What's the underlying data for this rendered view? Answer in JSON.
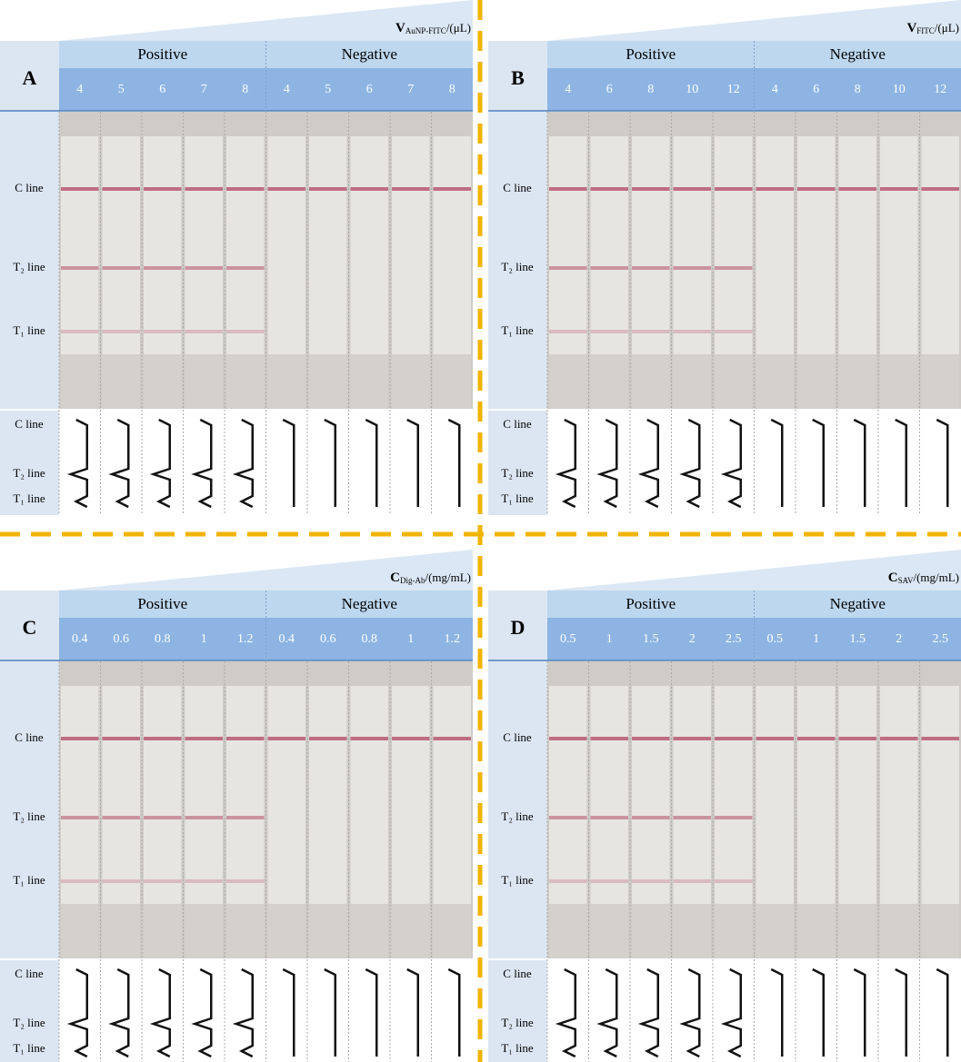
{
  "panels": [
    {
      "letter": "A",
      "variable": {
        "symbol": "V",
        "subscript": "AuNP-FITC",
        "unit": "/(μL)"
      },
      "groups": [
        {
          "name": "Positive",
          "columns": [
            "4",
            "5",
            "6",
            "7",
            "8"
          ]
        },
        {
          "name": "Negative",
          "columns": [
            "4",
            "5",
            "6",
            "7",
            "8"
          ]
        }
      ],
      "strip_labels": [
        "C line",
        "T₂ line",
        "T₁ line"
      ],
      "profile_labels": [
        "C line",
        "T₂ line",
        "T₁ line"
      ]
    },
    {
      "letter": "B",
      "variable": {
        "symbol": "V",
        "subscript": "FITC",
        "unit": "/(μL)"
      },
      "groups": [
        {
          "name": "Positive",
          "columns": [
            "4",
            "6",
            "8",
            "10",
            "12"
          ]
        },
        {
          "name": "Negative",
          "columns": [
            "4",
            "6",
            "8",
            "10",
            "12"
          ]
        }
      ],
      "strip_labels": [
        "C line",
        "T₂ line",
        "T₁ line"
      ],
      "profile_labels": [
        "C line",
        "T₂ line",
        "T₁ line"
      ]
    },
    {
      "letter": "C",
      "variable": {
        "symbol": "C",
        "subscript": "Dig-Ab",
        "unit": "/(mg/mL)"
      },
      "groups": [
        {
          "name": "Positive",
          "columns": [
            "0.4",
            "0.6",
            "0.8",
            "1",
            "1.2"
          ]
        },
        {
          "name": "Negative",
          "columns": [
            "0.4",
            "0.6",
            "0.8",
            "1",
            "1.2"
          ]
        }
      ],
      "strip_labels": [
        "C line",
        "T₂ line",
        "T₁ line"
      ],
      "profile_labels": [
        "C line",
        "T₂ line",
        "T₁ line"
      ]
    },
    {
      "letter": "D",
      "variable": {
        "symbol": "C",
        "subscript": "SAV",
        "unit": "/(mg/mL)"
      },
      "groups": [
        {
          "name": "Positive",
          "columns": [
            "0.5",
            "1",
            "1.5",
            "2",
            "2.5"
          ]
        },
        {
          "name": "Negative",
          "columns": [
            "0.5",
            "1",
            "1.5",
            "2",
            "2.5"
          ]
        }
      ],
      "strip_labels": [
        "C line",
        "T₂ line",
        "T₁ line"
      ],
      "profile_labels": [
        "C line",
        "T₂ line",
        "T₁ line"
      ]
    }
  ]
}
